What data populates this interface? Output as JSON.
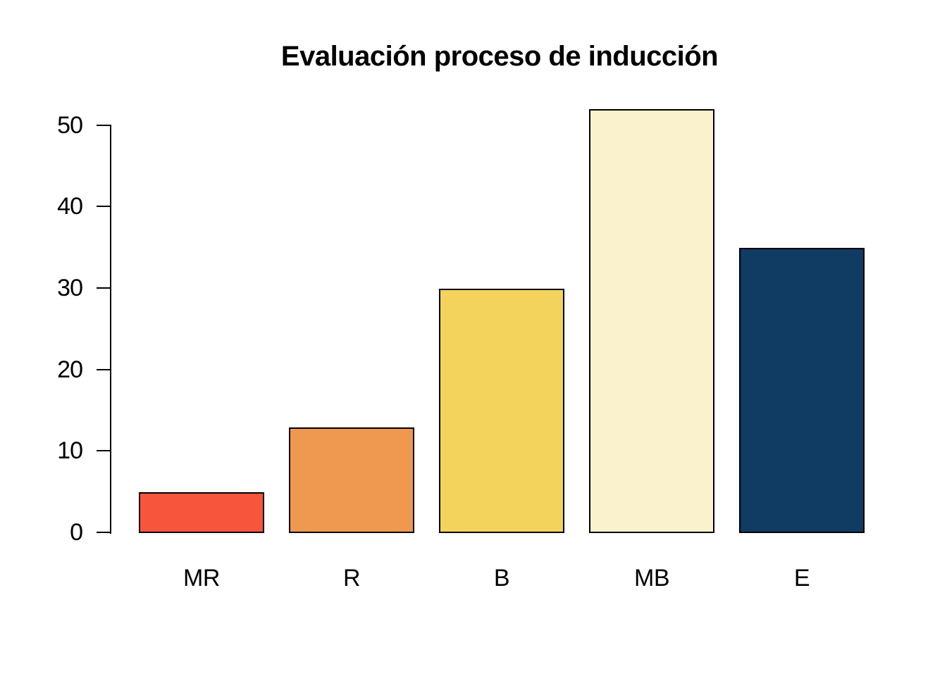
{
  "chart_data": {
    "type": "bar",
    "title": "Evaluación proceso de inducción",
    "categories": [
      "MR",
      "R",
      "B",
      "MB",
      "E"
    ],
    "values": [
      5,
      13,
      30,
      52,
      35
    ],
    "bar_colors": [
      "#F8553D",
      "#EE9850",
      "#F3D35C",
      "#FAF1CD",
      "#103B63"
    ],
    "bar_border_color": "#000000",
    "axis_color": "#000000",
    "text_color": "#000000",
    "background_color": "#FFFFFF",
    "xlabel": "",
    "ylabel": "",
    "ylim": [
      0,
      52
    ],
    "yticks": [
      0,
      10,
      20,
      30,
      40,
      50
    ],
    "grid": false,
    "legend": "none"
  }
}
